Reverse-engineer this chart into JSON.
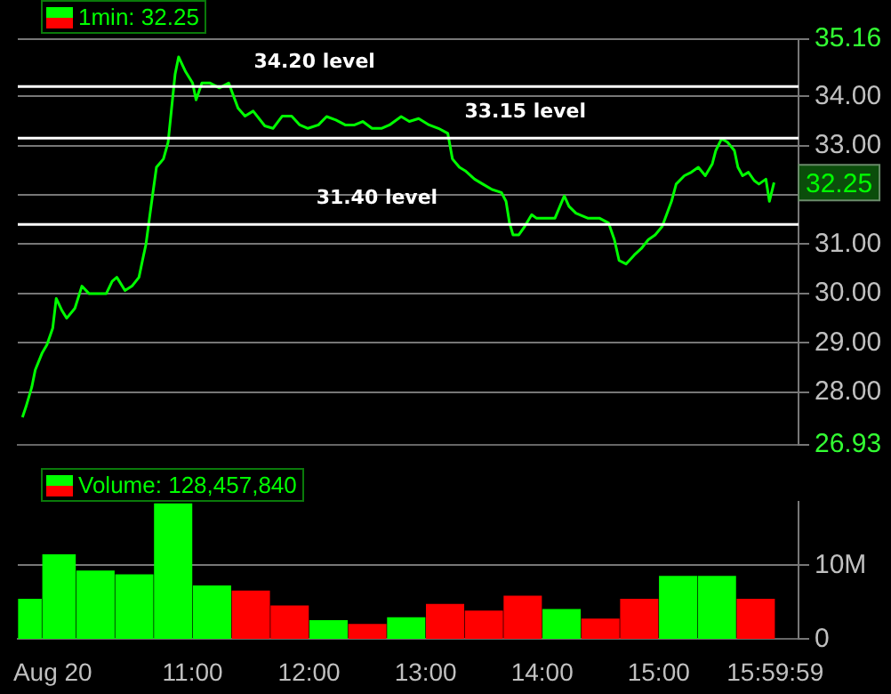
{
  "chart_data": [
    {
      "type": "line",
      "title": "1min: 32.25",
      "x": [
        9.54,
        9.57,
        9.62,
        9.65,
        9.71,
        9.75,
        9.8,
        9.83,
        9.88,
        9.92,
        9.99,
        10.05,
        10.11,
        10.19,
        10.26,
        10.31,
        10.35,
        10.42,
        10.48,
        10.54,
        10.57,
        10.6,
        10.63,
        10.66,
        10.69,
        10.75,
        10.79,
        10.82,
        10.85,
        10.88,
        10.94,
        11.0,
        11.03,
        11.08,
        11.15,
        11.23,
        11.31,
        11.39,
        11.45,
        11.52,
        11.62,
        11.69,
        11.77,
        11.85,
        11.92,
        11.99,
        12.08,
        12.15,
        12.23,
        12.31,
        12.39,
        12.46,
        12.54,
        12.62,
        12.69,
        12.79,
        12.86,
        12.94,
        13.03,
        13.11,
        13.19,
        13.23,
        13.29,
        13.34,
        13.42,
        13.49,
        13.57,
        13.65,
        13.69,
        13.72,
        13.75,
        13.8,
        13.85,
        13.91,
        13.95,
        14.03,
        14.11,
        14.19,
        14.23,
        14.29,
        14.39,
        14.49,
        14.57,
        14.62,
        14.66,
        14.72,
        14.79,
        14.85,
        14.91,
        14.97,
        15.03,
        15.11,
        15.15,
        15.22,
        15.28,
        15.34,
        15.4,
        15.46,
        15.49,
        15.54,
        15.59,
        15.65,
        15.68,
        15.72,
        15.77,
        15.82,
        15.86,
        15.92,
        15.95,
        15.99
      ],
      "series": [
        {
          "color": "#00ff00",
          "values": [
            27.49,
            27.7,
            28.1,
            28.45,
            28.8,
            28.96,
            29.3,
            29.9,
            29.65,
            29.5,
            29.7,
            30.15,
            30.0,
            30.0,
            30.0,
            30.25,
            30.33,
            30.06,
            30.15,
            30.33,
            30.67,
            31.0,
            31.53,
            32.05,
            32.56,
            32.73,
            33.07,
            33.76,
            34.45,
            34.8,
            34.5,
            34.27,
            33.93,
            34.27,
            34.27,
            34.17,
            34.27,
            33.76,
            33.6,
            33.7,
            33.4,
            33.35,
            33.6,
            33.6,
            33.42,
            33.35,
            33.42,
            33.59,
            33.52,
            33.42,
            33.42,
            33.49,
            33.35,
            33.35,
            33.42,
            33.59,
            33.49,
            33.55,
            33.42,
            33.35,
            33.25,
            32.73,
            32.56,
            32.49,
            32.32,
            32.22,
            32.11,
            32.05,
            31.87,
            31.43,
            31.19,
            31.19,
            31.36,
            31.6,
            31.53,
            31.53,
            31.53,
            31.98,
            31.77,
            31.63,
            31.53,
            31.53,
            31.43,
            31.09,
            30.67,
            30.6,
            30.78,
            30.91,
            31.09,
            31.19,
            31.36,
            31.87,
            32.22,
            32.39,
            32.46,
            32.56,
            32.39,
            32.63,
            32.9,
            33.14,
            33.07,
            32.9,
            32.56,
            32.39,
            32.46,
            32.29,
            32.22,
            32.32,
            31.87,
            32.25
          ]
        }
      ],
      "xlim": [
        9.5,
        16.2
      ],
      "ylim": [
        26.93,
        35.16
      ],
      "yticks": [
        35.16,
        {
          "value": 34,
          "label": "34.00"
        },
        {
          "value": 33,
          "label": "33.00"
        },
        {
          "value": 32,
          "label": null
        },
        {
          "value": 31,
          "label": "31.00"
        },
        {
          "value": 30,
          "label": "30.00"
        },
        {
          "value": 29,
          "label": "29.00"
        },
        {
          "value": 28,
          "label": "28.00"
        },
        26.93
      ],
      "tick_labels": "y",
      "grid": "y",
      "marker": "none",
      "line_style": "solid",
      "ref_lines": [
        {
          "axis": "y",
          "value": 34.2,
          "label": "34.20 level",
          "color": "#ffffff"
        },
        {
          "axis": "y",
          "value": 33.15,
          "label": "33.15 level",
          "color": "#ffffff"
        },
        {
          "axis": "y",
          "value": 31.4,
          "label": "31.40 level",
          "color": "#ffffff"
        }
      ],
      "annotations": [
        "32.25"
      ]
    },
    {
      "type": "bar",
      "title": "Volume: 128,457,840",
      "x": [
        9.583,
        9.833,
        10.167,
        10.5,
        10.833,
        11.167,
        11.5,
        11.833,
        12.167,
        12.5,
        12.833,
        13.167,
        13.5,
        13.833,
        14.167,
        14.5,
        14.833,
        15.167,
        15.5,
        15.833
      ],
      "values": [
        5.4,
        11.4,
        9.2,
        8.7,
        18.3,
        7.2,
        6.5,
        4.5,
        2.5,
        2.0,
        2.9,
        4.7,
        3.8,
        5.8,
        4.0,
        2.7,
        5.4,
        8.5,
        8.5,
        5.4
      ],
      "colors": [
        "#00ff00",
        "#00ff00",
        "#00ff00",
        "#00ff00",
        "#00ff00",
        "#00ff00",
        "#ff0000",
        "#ff0000",
        "#00ff00",
        "#ff0000",
        "#00ff00",
        "#ff0000",
        "#ff0000",
        "#ff0000",
        "#00ff00",
        "#ff0000",
        "#ff0000",
        "#00ff00",
        "#00ff00",
        "#ff0000"
      ],
      "xlim": [
        9.5,
        16.2
      ],
      "xticks": [
        {
          "value": 9.8,
          "label": "Aug 20"
        },
        {
          "value": 11,
          "label": "11:00"
        },
        {
          "value": 12,
          "label": "12:00"
        },
        {
          "value": 13,
          "label": "13:00"
        },
        {
          "value": 14,
          "label": "14:00"
        },
        {
          "value": 15,
          "label": "15:00"
        },
        {
          "value": 15.99972,
          "label": "15:59:59"
        }
      ],
      "ylim": [
        0,
        18.6
      ],
      "yticks": [
        0,
        {
          "value": 10,
          "label": "10M"
        }
      ],
      "grid": "y"
    }
  ]
}
